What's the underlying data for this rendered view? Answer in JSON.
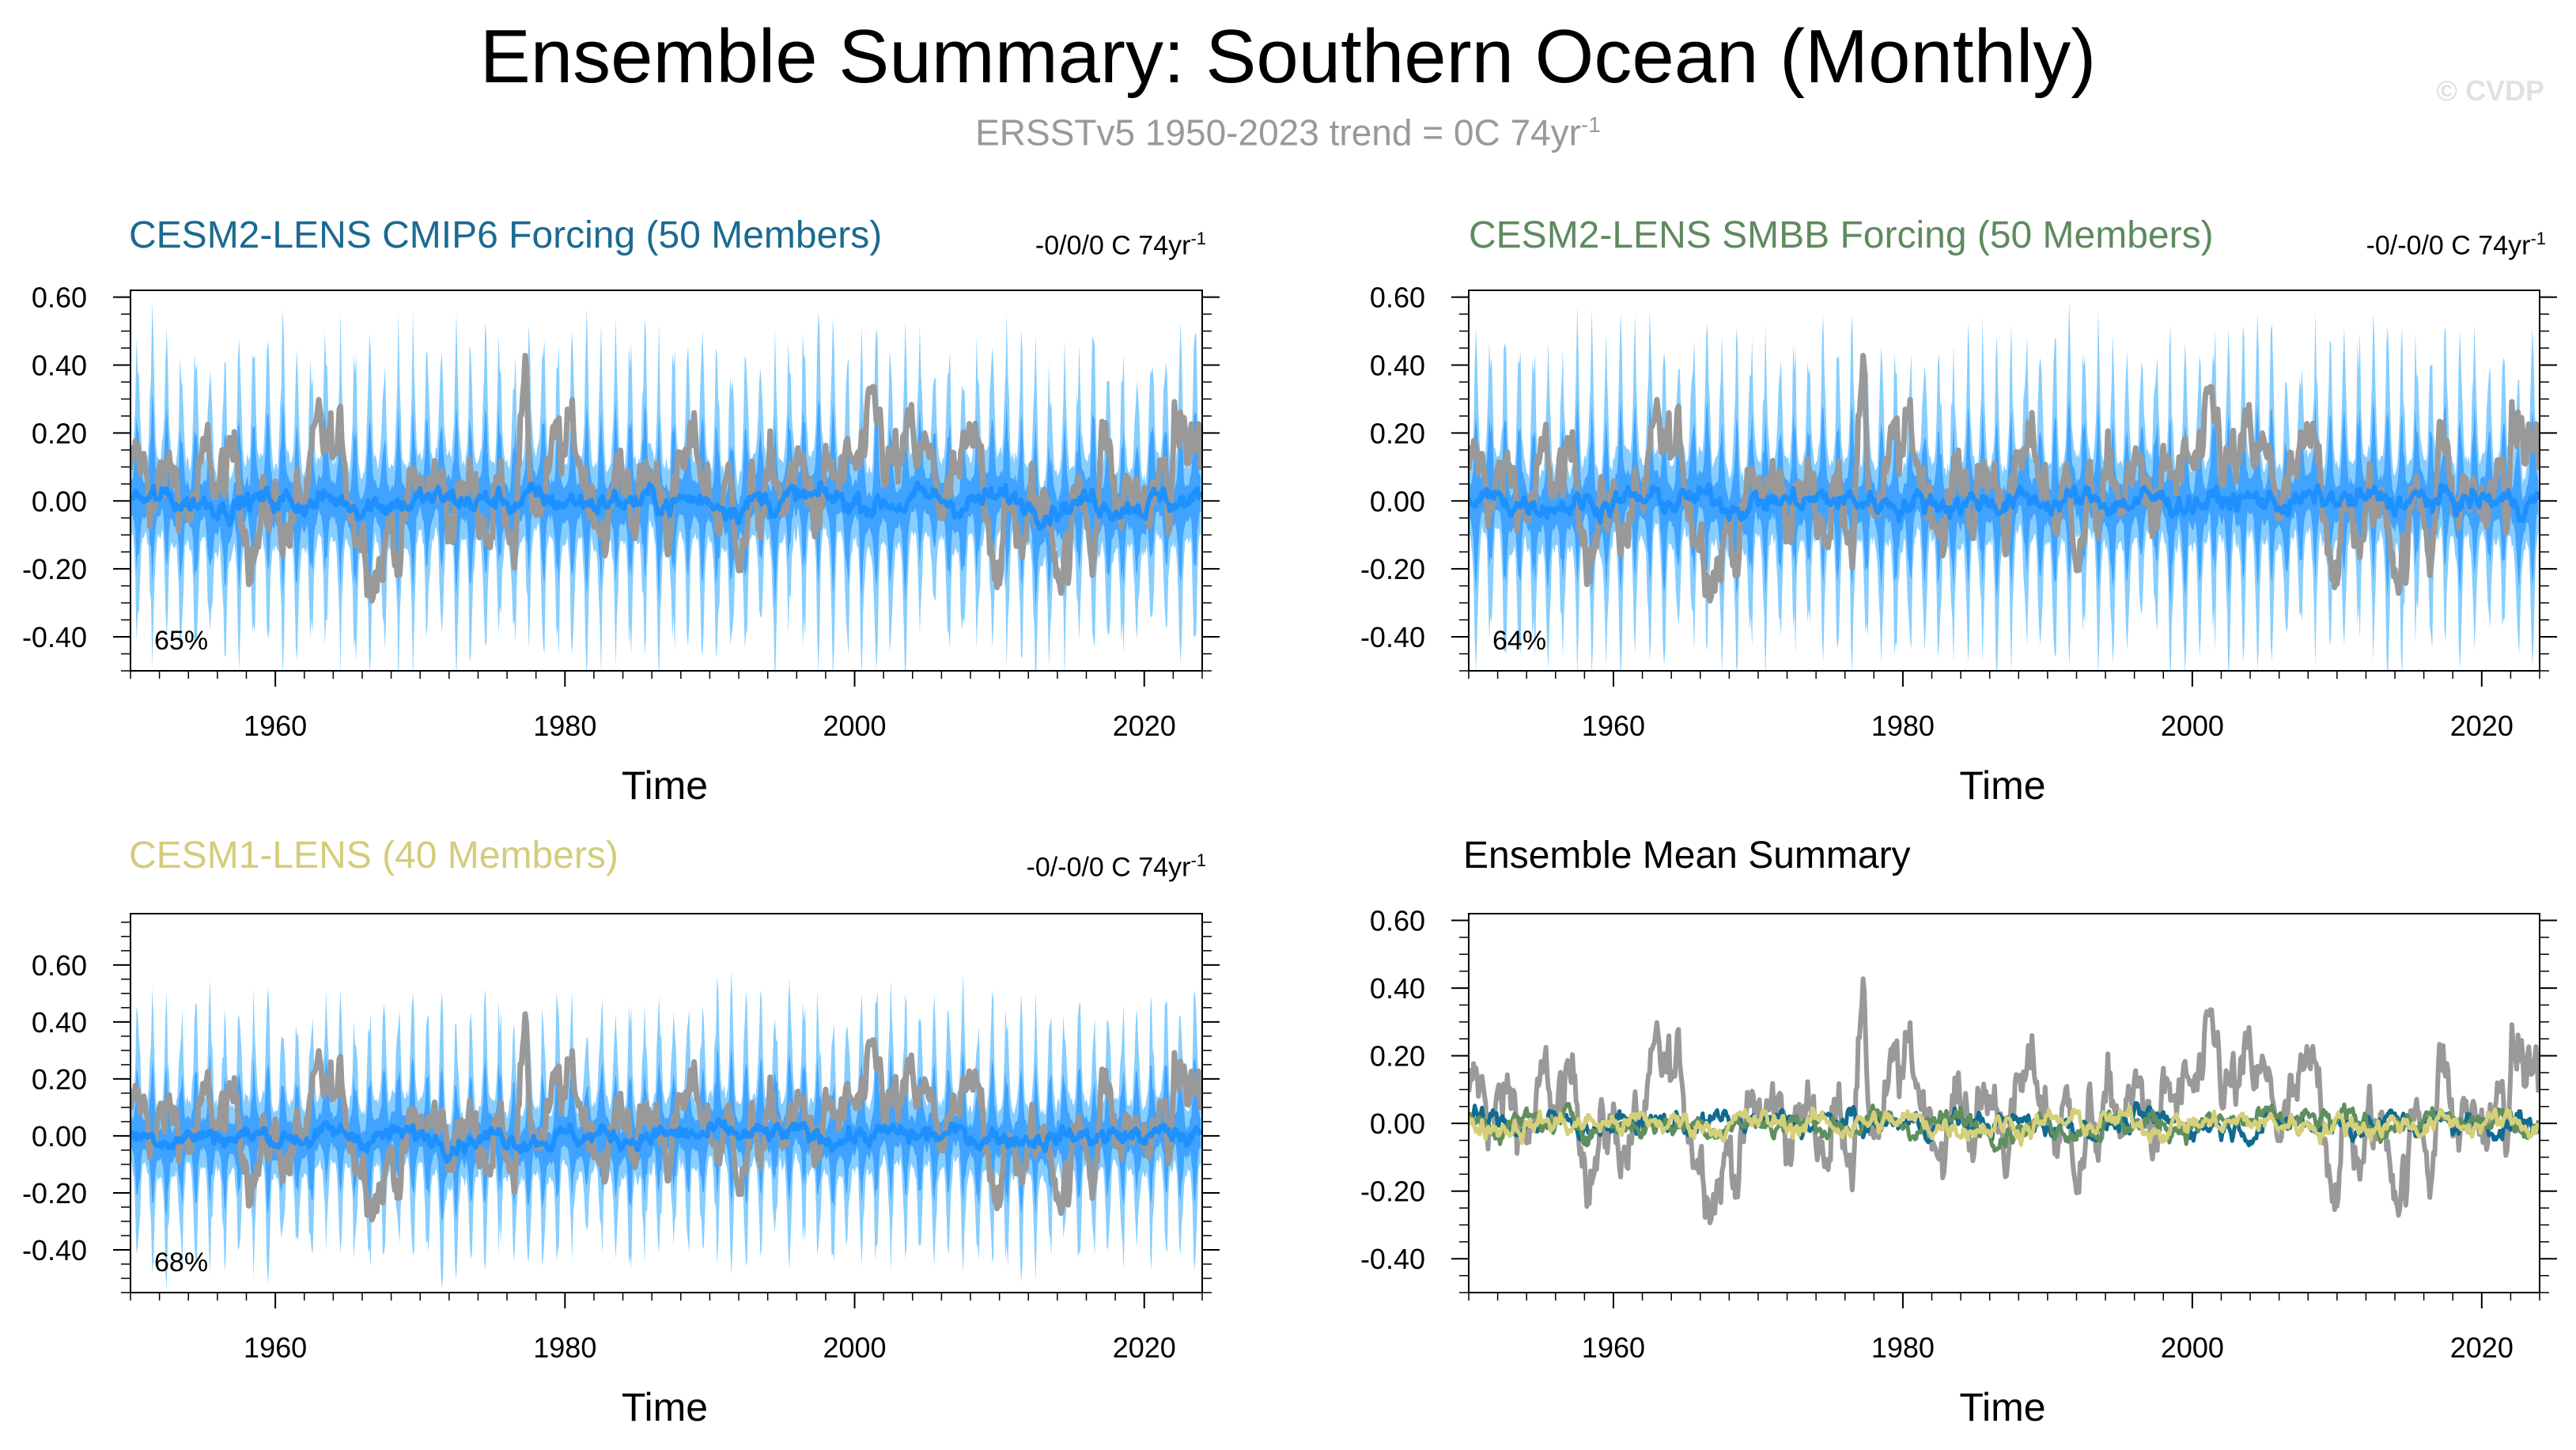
{
  "header": {
    "title": "Ensemble Summary: Southern Ocean (Monthly)",
    "subtitle": "ERSSTv5 1950-2023 trend = 0C 74yr",
    "subtitle_sup": "-1",
    "watermark": "© CVDP"
  },
  "colors": {
    "observed": "#999999",
    "ensemble_dark": "#1e90ff",
    "ensemble_mid": "#3fa3ff",
    "ensemble_light": "#87ceff",
    "cmip6": "#0f6b8f",
    "smbb": "#5f8f5f",
    "cesm1": "#d6cf7a"
  },
  "chart_data": [
    {
      "type": "line",
      "title": "CESM2-LENS CMIP6 Forcing (50 Members)",
      "title_color": "#1a6a91",
      "trend_label": "-0/0/0 C 74yr",
      "trend_sup": "-1",
      "percent_label": "65%",
      "xlabel": "Time",
      "xlim": [
        1950,
        2024
      ],
      "ylim": [
        -0.5,
        0.62
      ],
      "x_ticks": [
        1960,
        1980,
        2000,
        2020
      ],
      "y_ticks": [
        "0.60",
        "0.40",
        "0.20",
        "0.00",
        "-0.20",
        "-0.40"
      ],
      "series": [
        {
          "name": "ensemble 2.5-97.5% range",
          "kind": "band-light"
        },
        {
          "name": "ensemble 10-90% range",
          "kind": "band-mid"
        },
        {
          "name": "ensemble mean",
          "kind": "mean"
        },
        {
          "name": "ERSSTv5 observed",
          "kind": "obs"
        }
      ]
    },
    {
      "type": "line",
      "title": "CESM2-LENS SMBB Forcing (50 Members)",
      "title_color": "#5e8a5e",
      "trend_label": "-0/-0/0 C 74yr",
      "trend_sup": "-1",
      "percent_label": "64%",
      "xlabel": "Time",
      "xlim": [
        1950,
        2024
      ],
      "ylim": [
        -0.5,
        0.62
      ],
      "x_ticks": [
        1960,
        1980,
        2000,
        2020
      ],
      "y_ticks": [
        "0.60",
        "0.40",
        "0.20",
        "0.00",
        "-0.20",
        "-0.40"
      ],
      "series": [
        {
          "name": "ensemble 2.5-97.5% range",
          "kind": "band-light"
        },
        {
          "name": "ensemble 10-90% range",
          "kind": "band-mid"
        },
        {
          "name": "ensemble mean",
          "kind": "mean"
        },
        {
          "name": "ERSSTv5 observed",
          "kind": "obs"
        }
      ]
    },
    {
      "type": "line",
      "title": "CESM1-LENS (40 Members)",
      "title_color": "#d4cc7a",
      "trend_label": "-0/-0/0 C 74yr",
      "trend_sup": "-1",
      "percent_label": "68%",
      "xlabel": "Time",
      "xlim": [
        1950,
        2024
      ],
      "ylim": [
        -0.55,
        0.78
      ],
      "x_ticks": [
        1960,
        1980,
        2000,
        2020
      ],
      "y_ticks": [
        "0.60",
        "0.40",
        "0.20",
        "0.00",
        "-0.20",
        "-0.40"
      ],
      "series": [
        {
          "name": "ensemble 2.5-97.5% range",
          "kind": "band-light"
        },
        {
          "name": "ensemble 10-90% range",
          "kind": "band-mid"
        },
        {
          "name": "ensemble mean",
          "kind": "mean"
        },
        {
          "name": "ERSSTv5 observed",
          "kind": "obs"
        }
      ]
    },
    {
      "type": "line",
      "title": "Ensemble Mean Summary",
      "title_color": "#000000",
      "xlabel": "Time",
      "xlim": [
        1950,
        2024
      ],
      "ylim": [
        -0.5,
        0.62
      ],
      "x_ticks": [
        1960,
        1980,
        2000,
        2020
      ],
      "y_ticks": [
        "0.60",
        "0.40",
        "0.20",
        "0.00",
        "-0.20",
        "-0.40"
      ],
      "series": [
        {
          "name": "ERSSTv5 observed",
          "kind": "obs"
        },
        {
          "name": "CESM2-LENS CMIP6 mean",
          "kind": "cmip6"
        },
        {
          "name": "CESM2-LENS SMBB mean",
          "kind": "smbb"
        },
        {
          "name": "CESM1-LENS mean",
          "kind": "cesm1"
        }
      ]
    }
  ]
}
